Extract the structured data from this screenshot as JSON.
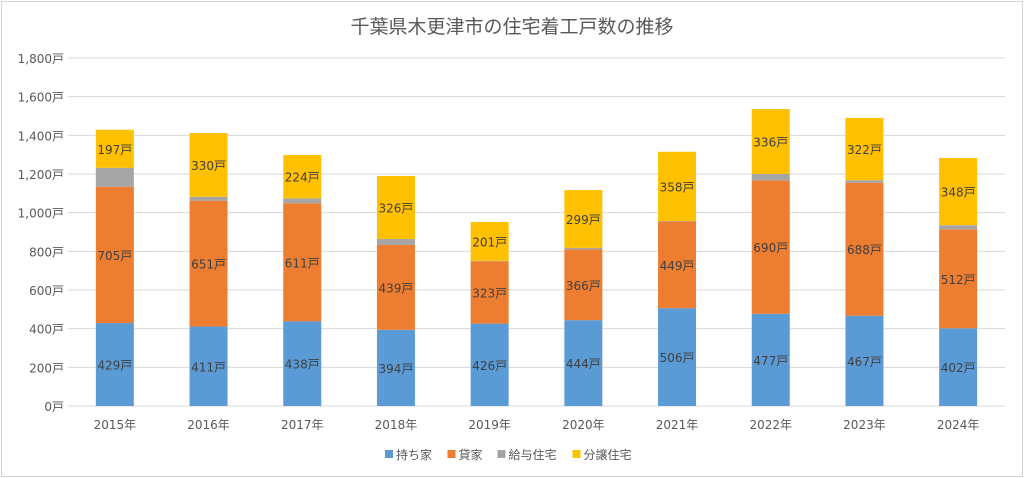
{
  "chart_data": {
    "type": "bar",
    "stacked": true,
    "title": "千葉県木更津市の住宅着工戸数の推移",
    "xlabel": "",
    "ylabel": "",
    "unit": "戸",
    "ylim": [
      0,
      1800
    ],
    "yticks": [
      0,
      200,
      400,
      600,
      800,
      1000,
      1200,
      1400,
      1600,
      1800
    ],
    "ytick_labels": [
      "0戸",
      "200戸",
      "400戸",
      "600戸",
      "800戸",
      "1,000戸",
      "1,200戸",
      "1,400戸",
      "1,600戸",
      "1,800戸"
    ],
    "grid": true,
    "legend_position": "bottom",
    "categories": [
      "2015年",
      "2016年",
      "2017年",
      "2018年",
      "2019年",
      "2020年",
      "2021年",
      "2022年",
      "2023年",
      "2024年"
    ],
    "series": [
      {
        "name": "持ち家",
        "color": "#5b9bd5",
        "labeled": true,
        "values": [
          429,
          411,
          438,
          394,
          426,
          444,
          506,
          477,
          467,
          402
        ]
      },
      {
        "name": "貸家",
        "color": "#ed7d31",
        "labeled": true,
        "values": [
          705,
          651,
          611,
          439,
          323,
          366,
          449,
          690,
          688,
          512
        ]
      },
      {
        "name": "給与住宅",
        "color": "#a5a5a5",
        "labeled": false,
        "values": [
          98,
          20,
          25,
          31,
          2,
          8,
          2,
          33,
          13,
          21
        ]
      },
      {
        "name": "分譲住宅",
        "color": "#ffc000",
        "labeled": true,
        "values": [
          197,
          330,
          224,
          326,
          201,
          299,
          358,
          336,
          322,
          348
        ]
      }
    ]
  }
}
